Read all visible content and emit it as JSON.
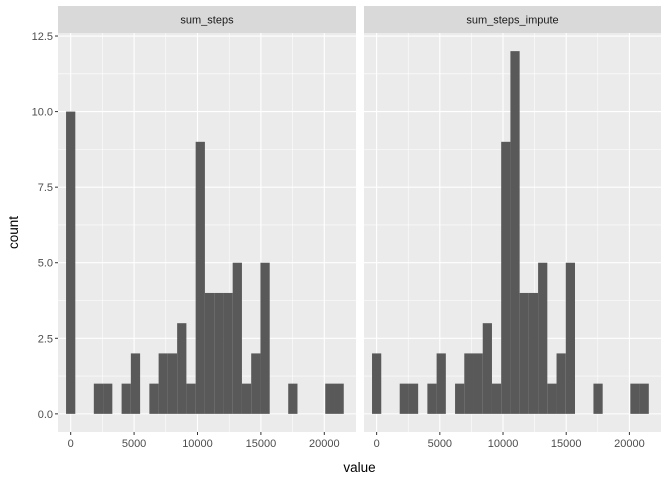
{
  "chart_data": {
    "type": "bar",
    "subtype": "faceted-histogram",
    "xlabel": "value",
    "ylabel": "count",
    "xlim": [
      -1000,
      22500
    ],
    "ylim": [
      -0.6,
      12.6
    ],
    "x_ticks": [
      0,
      5000,
      10000,
      15000,
      20000
    ],
    "x_tick_labels": [
      "0",
      "5000",
      "10000",
      "15000",
      "20000"
    ],
    "y_ticks": [
      0,
      2.5,
      5,
      7.5,
      10,
      12.5
    ],
    "y_tick_labels": [
      "0.0",
      "2.5",
      "5.0",
      "7.5",
      "10.0",
      "12.5"
    ],
    "grid": true,
    "bin_width": 730,
    "bar_color": "#595959",
    "panel_background": "#ebebeb",
    "strip_background": "#d9d9d9",
    "grid_color": "#ffffff",
    "facets": [
      {
        "name": "sum_steps",
        "bins": [
          {
            "x": 0,
            "count": 10
          },
          {
            "x": 2190,
            "count": 1
          },
          {
            "x": 2920,
            "count": 1
          },
          {
            "x": 4380,
            "count": 1
          },
          {
            "x": 5110,
            "count": 2
          },
          {
            "x": 6570,
            "count": 1
          },
          {
            "x": 7300,
            "count": 2
          },
          {
            "x": 8030,
            "count": 2
          },
          {
            "x": 8760,
            "count": 3
          },
          {
            "x": 9490,
            "count": 1
          },
          {
            "x": 10220,
            "count": 9
          },
          {
            "x": 10950,
            "count": 4
          },
          {
            "x": 11680,
            "count": 4
          },
          {
            "x": 12410,
            "count": 4
          },
          {
            "x": 13140,
            "count": 5
          },
          {
            "x": 13870,
            "count": 1
          },
          {
            "x": 14600,
            "count": 2
          },
          {
            "x": 15330,
            "count": 5
          },
          {
            "x": 17520,
            "count": 1
          },
          {
            "x": 20440,
            "count": 1
          },
          {
            "x": 21170,
            "count": 1
          }
        ]
      },
      {
        "name": "sum_steps_impute",
        "bins": [
          {
            "x": 0,
            "count": 2
          },
          {
            "x": 2190,
            "count": 1
          },
          {
            "x": 2920,
            "count": 1
          },
          {
            "x": 4380,
            "count": 1
          },
          {
            "x": 5110,
            "count": 2
          },
          {
            "x": 6570,
            "count": 1
          },
          {
            "x": 7300,
            "count": 2
          },
          {
            "x": 8030,
            "count": 2
          },
          {
            "x": 8760,
            "count": 3
          },
          {
            "x": 9490,
            "count": 1
          },
          {
            "x": 10220,
            "count": 9
          },
          {
            "x": 10950,
            "count": 12
          },
          {
            "x": 11680,
            "count": 4
          },
          {
            "x": 12410,
            "count": 4
          },
          {
            "x": 13140,
            "count": 5
          },
          {
            "x": 13870,
            "count": 1
          },
          {
            "x": 14600,
            "count": 2
          },
          {
            "x": 15330,
            "count": 5
          },
          {
            "x": 17520,
            "count": 1
          },
          {
            "x": 20440,
            "count": 1
          },
          {
            "x": 21170,
            "count": 1
          }
        ]
      }
    ]
  }
}
